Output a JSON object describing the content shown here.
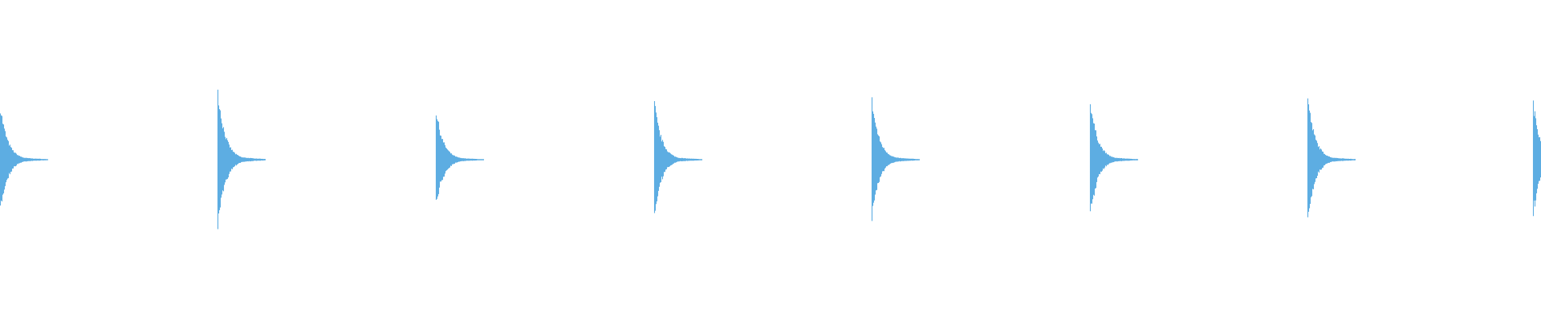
{
  "chart_data": {
    "type": "area",
    "title": "",
    "xlabel": "",
    "ylabel": "",
    "grid": false,
    "axes_visible": false,
    "ylim": [
      -1,
      1
    ],
    "color": "#5dade2",
    "background": "#ffffff",
    "bursts": [
      {
        "index": 1,
        "peak_amplitude": 0.36
      },
      {
        "index": 2,
        "peak_amplitude": 0.47
      },
      {
        "index": 3,
        "peak_amplitude": 0.33
      },
      {
        "index": 4,
        "peak_amplitude": 0.38
      },
      {
        "index": 5,
        "peak_amplitude": 0.4
      },
      {
        "index": 6,
        "peak_amplitude": 0.4
      },
      {
        "index": 7,
        "peak_amplitude": 0.42
      },
      {
        "index": 8,
        "peak_amplitude": 0.38
      }
    ]
  }
}
